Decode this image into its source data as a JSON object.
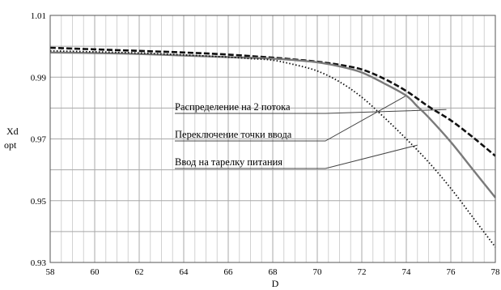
{
  "chart_data": {
    "type": "line",
    "xlabel": "D",
    "ylabel_lines": [
      "Xd",
      "opt"
    ],
    "xlim": [
      58,
      78
    ],
    "ylim": [
      0.93,
      1.01
    ],
    "x_ticks": [
      58,
      60,
      62,
      64,
      66,
      68,
      70,
      72,
      74,
      76,
      78
    ],
    "y_ticks": [
      {
        "value": 0.93,
        "label": "0.93"
      },
      {
        "value": 0.95,
        "label": "0.95"
      },
      {
        "value": 0.97,
        "label": "0.97"
      },
      {
        "value": 0.99,
        "label": "0.99"
      },
      {
        "value": 1.01,
        "label": "1.01"
      }
    ],
    "x_grid_step": 0.5,
    "y_grid_step": 0.01,
    "grid": true,
    "series": [
      {
        "name": "Распределение на 2 потока",
        "style": "dashed",
        "color": "#111111",
        "x": [
          58,
          60,
          62,
          64,
          66,
          68,
          69,
          70,
          71,
          72,
          73,
          74,
          75,
          76,
          77,
          78
        ],
        "y": [
          0.9995,
          0.999,
          0.9985,
          0.998,
          0.9973,
          0.9963,
          0.9957,
          0.995,
          0.994,
          0.9925,
          0.9895,
          0.9855,
          0.9805,
          0.976,
          0.9705,
          0.9645
        ]
      },
      {
        "name": "Переключение точки ввода",
        "style": "solid",
        "color": "#7a7a7a",
        "x": [
          58,
          60,
          62,
          64,
          66,
          68,
          69,
          70,
          71,
          72,
          73,
          74,
          74.5,
          75,
          76,
          77,
          78
        ],
        "y": [
          0.998,
          0.9978,
          0.9975,
          0.997,
          0.9965,
          0.996,
          0.9955,
          0.9948,
          0.9935,
          0.9915,
          0.988,
          0.984,
          0.9805,
          0.977,
          0.969,
          0.96,
          0.951
        ]
      },
      {
        "name": "Ввод на тарелку питания",
        "style": "dotted",
        "color": "#111111",
        "x": [
          58,
          60,
          62,
          64,
          66,
          67,
          68,
          69,
          70,
          71,
          72,
          73,
          74,
          75,
          76,
          77,
          78
        ],
        "y": [
          0.9985,
          0.9982,
          0.9978,
          0.9972,
          0.9965,
          0.996,
          0.9955,
          0.994,
          0.992,
          0.9885,
          0.9835,
          0.977,
          0.97,
          0.9625,
          0.954,
          0.9445,
          0.935
        ]
      }
    ],
    "annotations": [
      {
        "text": "Распределение на 2 потока",
        "series": 0,
        "point": [
          75.8,
          0.9795
        ]
      },
      {
        "text": "Переключение точки ввода",
        "series": 1,
        "point": [
          74.0,
          0.984
        ]
      },
      {
        "text": "Ввод на тарелку питания",
        "series": 2,
        "point": [
          74.5,
          0.968
        ]
      }
    ]
  }
}
